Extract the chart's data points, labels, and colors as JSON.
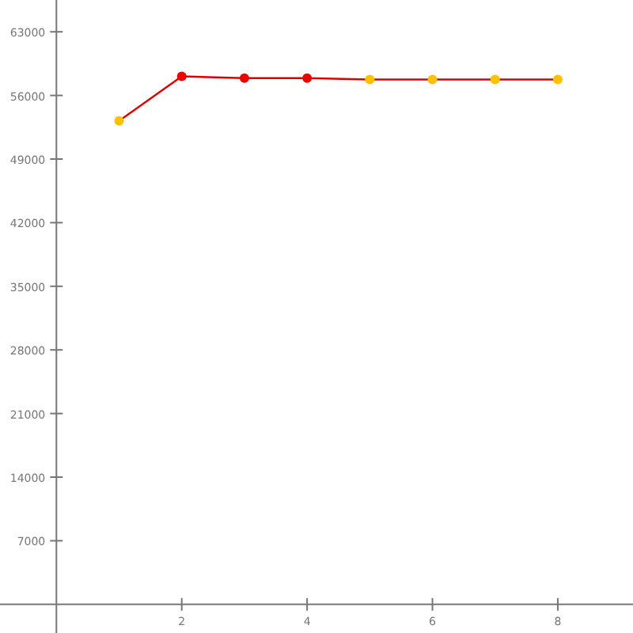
{
  "chart_data": {
    "type": "line",
    "x": [
      1,
      2,
      3,
      4,
      5,
      6,
      7,
      8
    ],
    "series": [
      {
        "color": "#dd0000",
        "colors": [
          "#ffc000",
          "#ee0000",
          "#ee0000",
          "#ee0000",
          "#ffc000",
          "#ffc000",
          "#ffc000",
          "#ffc000"
        ],
        "values": [
          53200,
          58100,
          57900,
          57900,
          57750,
          57750,
          57750,
          57750
        ]
      }
    ],
    "xlim": [
      -0.9,
      9.2
    ],
    "ylim": [
      -3150,
      66500
    ],
    "xticks": [
      2,
      4,
      6,
      8
    ],
    "yticks": [
      7000,
      14000,
      21000,
      28000,
      35000,
      42000,
      49000,
      56000,
      63000
    ],
    "grid": false,
    "marker": "circle",
    "line_style": "solid"
  }
}
